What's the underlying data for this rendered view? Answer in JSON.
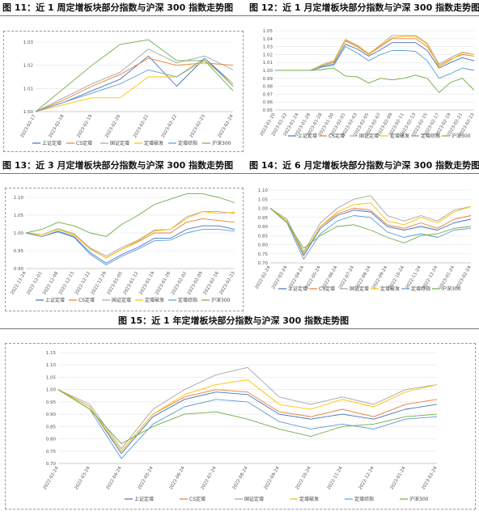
{
  "page": {
    "titles": {
      "fig11": "图 11：近 1 周定增板块部分指数与沪深 300 指数走势图",
      "fig12": "图 12：近 1 月定增板块部分指数与沪深 300 指数走势图",
      "fig13": "图 13：近 3 月定增板块部分指数与沪深 300 指数走势图",
      "fig14": "图 14：近 6 月定增板块部分指数与沪深 300 指数走势图",
      "fig15": "图 15：近 1 年定增板块部分指数与沪深 300 指数走势图"
    }
  },
  "chart_data": [
    {
      "id": "fig11",
      "type": "line",
      "title": "图 11：近 1 周定增板块部分指数与沪深 300 指数走势图",
      "ylim": [
        1.0,
        1.03
      ],
      "yticks": [
        "1.00",
        "1.01",
        "1.02",
        "1.03"
      ],
      "x": [
        "2023-02-17",
        "2023-02-18",
        "2023-02-19",
        "2023-02-20",
        "2023-02-21",
        "2023-02-22",
        "2023-02-23",
        "2023-02-24"
      ],
      "legend": "bottom",
      "series": [
        {
          "name": "上证定增",
          "color": "#4472c4",
          "values": [
            1.0,
            1.004,
            1.009,
            1.014,
            1.024,
            1.011,
            1.023,
            1.012
          ]
        },
        {
          "name": "CS定增",
          "color": "#ed7d31",
          "values": [
            1.0,
            1.005,
            1.011,
            1.016,
            1.023,
            1.02,
            1.021,
            1.02
          ]
        },
        {
          "name": "国证定增",
          "color": "#a5a5a5",
          "values": [
            1.0,
            1.006,
            1.012,
            1.017,
            1.027,
            1.021,
            1.024,
            1.018
          ]
        },
        {
          "name": "定增破发",
          "color": "#ffc000",
          "values": [
            1.0,
            1.003,
            1.006,
            1.006,
            1.015,
            1.015,
            1.022,
            1.012
          ]
        },
        {
          "name": "定增综指",
          "color": "#5b9bd5",
          "values": [
            1.0,
            1.004,
            1.008,
            1.012,
            1.018,
            1.015,
            1.023,
            1.011
          ]
        },
        {
          "name": "沪深300",
          "color": "#70ad47",
          "values": [
            1.0,
            1.01,
            1.02,
            1.029,
            1.031,
            1.022,
            1.022,
            1.009
          ]
        }
      ]
    },
    {
      "id": "fig12",
      "type": "line",
      "title": "图 12：近 1 月定增板块部分指数与沪深 300 指数走势图",
      "ylim": [
        0.95,
        1.05
      ],
      "yticks": [
        "0.95",
        "0.96",
        "0.97",
        "0.98",
        "0.99",
        "1.00",
        "1.01",
        "1.02",
        "1.03",
        "1.04",
        "1.05"
      ],
      "x": [
        "2023-01-20",
        "2023-01-22",
        "2023-01-24",
        "2023-01-26",
        "2023-01-28",
        "2023-01-30",
        "2023-02-01",
        "2023-02-03",
        "2023-02-05",
        "2023-02-07",
        "2023-02-09",
        "2023-02-11",
        "2023-02-13",
        "2023-02-15",
        "2023-02-17",
        "2023-02-19",
        "2023-02-21",
        "2023-02-23"
      ],
      "legend": "bottom",
      "series": [
        {
          "name": "上证定增",
          "color": "#4472c4",
          "values": [
            1.0,
            1.0,
            1.0,
            1.0,
            1.005,
            1.008,
            1.033,
            1.027,
            1.018,
            1.026,
            1.035,
            1.035,
            1.035,
            1.025,
            1.003,
            1.01,
            1.016,
            1.012
          ]
        },
        {
          "name": "CS定增",
          "color": "#ed7d31",
          "values": [
            1.0,
            1.0,
            1.0,
            1.0,
            1.006,
            1.01,
            1.037,
            1.03,
            1.02,
            1.03,
            1.04,
            1.04,
            1.04,
            1.03,
            1.006,
            1.014,
            1.02,
            1.018
          ]
        },
        {
          "name": "国证定增",
          "color": "#a5a5a5",
          "values": [
            1.0,
            1.0,
            1.0,
            1.0,
            1.007,
            1.012,
            1.039,
            1.032,
            1.021,
            1.032,
            1.044,
            1.044,
            1.044,
            1.034,
            1.008,
            1.016,
            1.023,
            1.02
          ]
        },
        {
          "name": "定增破发",
          "color": "#ffc000",
          "values": [
            1.0,
            1.0,
            1.0,
            1.0,
            1.006,
            1.011,
            1.038,
            1.031,
            1.021,
            1.031,
            1.041,
            1.043,
            1.043,
            1.033,
            1.004,
            1.013,
            1.022,
            1.02
          ]
        },
        {
          "name": "定增综指",
          "color": "#5b9bd5",
          "values": [
            1.0,
            1.0,
            1.0,
            1.0,
            1.004,
            1.006,
            1.03,
            1.022,
            1.012,
            1.02,
            1.025,
            1.025,
            1.024,
            1.012,
            0.99,
            0.996,
            1.003,
            1.0
          ]
        },
        {
          "name": "沪深300",
          "color": "#70ad47",
          "values": [
            1.0,
            1.0,
            1.0,
            1.0,
            1.001,
            1.003,
            0.993,
            0.992,
            0.984,
            0.99,
            0.988,
            0.99,
            0.994,
            0.99,
            0.972,
            0.985,
            0.99,
            0.975
          ]
        }
      ]
    },
    {
      "id": "fig13",
      "type": "line",
      "title": "图 13：近 3 月定增板块部分指数与沪深 300 指数走势图",
      "ylim": [
        0.9,
        1.1
      ],
      "yticks": [
        "0.90",
        "0.95",
        "1.00",
        "1.05",
        "1.10"
      ],
      "x": [
        "2022-11-24",
        "2022-12-01",
        "2022-12-08",
        "2022-12-15",
        "2022-12-22",
        "2022-12-29",
        "2023-01-05",
        "2023-01-12",
        "2023-01-19",
        "2023-01-26",
        "2023-02-02",
        "2023-02-09",
        "2023-02-16",
        "2023-02-23"
      ],
      "legend": "bottom",
      "series": [
        {
          "name": "上证定增",
          "color": "#4472c4",
          "values": [
            1.0,
            0.99,
            1.005,
            0.99,
            0.945,
            0.915,
            0.94,
            0.96,
            0.985,
            0.985,
            1.01,
            1.02,
            1.02,
            1.01
          ]
        },
        {
          "name": "CS定增",
          "color": "#ed7d31",
          "values": [
            1.0,
            0.995,
            1.01,
            0.995,
            0.955,
            0.93,
            0.955,
            0.975,
            1.0,
            1.0,
            1.03,
            1.04,
            1.035,
            1.03
          ]
        },
        {
          "name": "国证定增",
          "color": "#a5a5a5",
          "values": [
            1.0,
            0.995,
            1.012,
            0.998,
            0.958,
            0.935,
            0.96,
            0.98,
            1.008,
            1.01,
            1.045,
            1.06,
            1.06,
            1.055
          ]
        },
        {
          "name": "定增破发",
          "color": "#ffc000",
          "values": [
            1.0,
            0.995,
            1.01,
            0.996,
            0.956,
            0.93,
            0.955,
            0.978,
            1.005,
            1.01,
            1.04,
            1.06,
            1.055,
            1.058
          ]
        },
        {
          "name": "定增综指",
          "color": "#5b9bd5",
          "values": [
            1.0,
            0.99,
            1.003,
            0.988,
            0.94,
            0.91,
            0.935,
            0.955,
            0.978,
            0.98,
            1.0,
            1.01,
            1.01,
            1.005
          ]
        },
        {
          "name": "沪深300",
          "color": "#70ad47",
          "values": [
            1.0,
            1.01,
            1.03,
            1.02,
            1.0,
            0.99,
            1.025,
            1.05,
            1.08,
            1.095,
            1.11,
            1.11,
            1.1,
            1.085
          ]
        }
      ]
    },
    {
      "id": "fig14",
      "type": "line",
      "title": "图 14：近 6 月定增板块部分指数与沪深 300 指数走势图",
      "ylim": [
        0.7,
        1.1
      ],
      "yticks": [
        "0.70",
        "0.75",
        "0.80",
        "0.85",
        "0.90",
        "0.95",
        "1.00",
        "1.05",
        "1.10"
      ],
      "x": [
        "2022-02-24",
        "2022-03-24",
        "2022-04-24",
        "2022-05-24",
        "2022-06-24",
        "2022-07-24",
        "2022-08-24",
        "2022-09-24",
        "2022-10-24",
        "2022-11-24",
        "2022-12-24",
        "2023-01-24",
        "2023-02-24"
      ],
      "legend": "bottom",
      "series": [
        {
          "name": "上证定增",
          "color": "#4472c4",
          "values": [
            1.0,
            0.93,
            0.74,
            0.89,
            0.96,
            0.99,
            0.98,
            0.9,
            0.88,
            0.9,
            0.88,
            0.92,
            0.94
          ]
        },
        {
          "name": "CS定增",
          "color": "#ed7d31",
          "values": [
            1.0,
            0.93,
            0.75,
            0.9,
            0.97,
            1.0,
            0.99,
            0.91,
            0.89,
            0.92,
            0.89,
            0.94,
            0.96
          ]
        },
        {
          "name": "国证定增",
          "color": "#a5a5a5",
          "values": [
            1.0,
            0.94,
            0.76,
            0.92,
            1.0,
            1.05,
            1.07,
            0.96,
            0.93,
            0.96,
            0.93,
            0.99,
            1.01
          ]
        },
        {
          "name": "定增破发",
          "color": "#ffc000",
          "values": [
            1.0,
            0.93,
            0.75,
            0.9,
            0.98,
            1.02,
            1.03,
            0.93,
            0.91,
            0.95,
            0.92,
            0.98,
            1.01
          ]
        },
        {
          "name": "定增综指",
          "color": "#5b9bd5",
          "values": [
            1.0,
            0.92,
            0.72,
            0.86,
            0.93,
            0.96,
            0.95,
            0.87,
            0.84,
            0.86,
            0.84,
            0.88,
            0.89
          ]
        },
        {
          "name": "沪深300",
          "color": "#70ad47",
          "values": [
            1.0,
            0.92,
            0.78,
            0.85,
            0.9,
            0.91,
            0.88,
            0.84,
            0.81,
            0.85,
            0.86,
            0.89,
            0.9
          ]
        }
      ]
    },
    {
      "id": "fig15",
      "type": "line",
      "title": "图 15：近 1 年定增板块部分指数与沪深 300 指数走势图",
      "ylim": [
        0.7,
        1.15
      ],
      "yticks": [
        "0.70",
        "0.75",
        "0.80",
        "0.85",
        "0.90",
        "0.95",
        "1.00",
        "1.05",
        "1.10",
        "1.15"
      ],
      "x": [
        "2022-02-24",
        "2022-03-24",
        "2022-04-24",
        "2022-05-24",
        "2022-06-24",
        "2022-07-24",
        "2022-08-24",
        "2022-09-24",
        "2022-10-24",
        "2022-11-24",
        "2022-12-24",
        "2023-01-24",
        "2023-02-24"
      ],
      "legend": "bottom",
      "series": [
        {
          "name": "上证定增",
          "color": "#4472c4",
          "values": [
            1.0,
            0.93,
            0.74,
            0.89,
            0.96,
            0.99,
            0.98,
            0.9,
            0.88,
            0.9,
            0.88,
            0.92,
            0.94
          ]
        },
        {
          "name": "CS定增",
          "color": "#ed7d31",
          "values": [
            1.0,
            0.93,
            0.75,
            0.9,
            0.97,
            1.0,
            0.99,
            0.91,
            0.89,
            0.92,
            0.89,
            0.94,
            0.96
          ]
        },
        {
          "name": "国证定增",
          "color": "#a5a5a5",
          "values": [
            1.0,
            0.94,
            0.76,
            0.92,
            1.0,
            1.06,
            1.09,
            0.97,
            0.94,
            0.97,
            0.94,
            1.0,
            1.02
          ]
        },
        {
          "name": "定增破发",
          "color": "#ffc000",
          "values": [
            1.0,
            0.93,
            0.75,
            0.9,
            0.98,
            1.02,
            1.04,
            0.94,
            0.92,
            0.96,
            0.93,
            0.99,
            1.02
          ]
        },
        {
          "name": "定增综指",
          "color": "#5b9bd5",
          "values": [
            1.0,
            0.92,
            0.72,
            0.86,
            0.93,
            0.96,
            0.95,
            0.87,
            0.84,
            0.86,
            0.84,
            0.88,
            0.89
          ]
        },
        {
          "name": "沪深300",
          "color": "#70ad47",
          "values": [
            1.0,
            0.92,
            0.78,
            0.85,
            0.9,
            0.91,
            0.88,
            0.84,
            0.81,
            0.85,
            0.86,
            0.89,
            0.9
          ]
        }
      ]
    }
  ]
}
